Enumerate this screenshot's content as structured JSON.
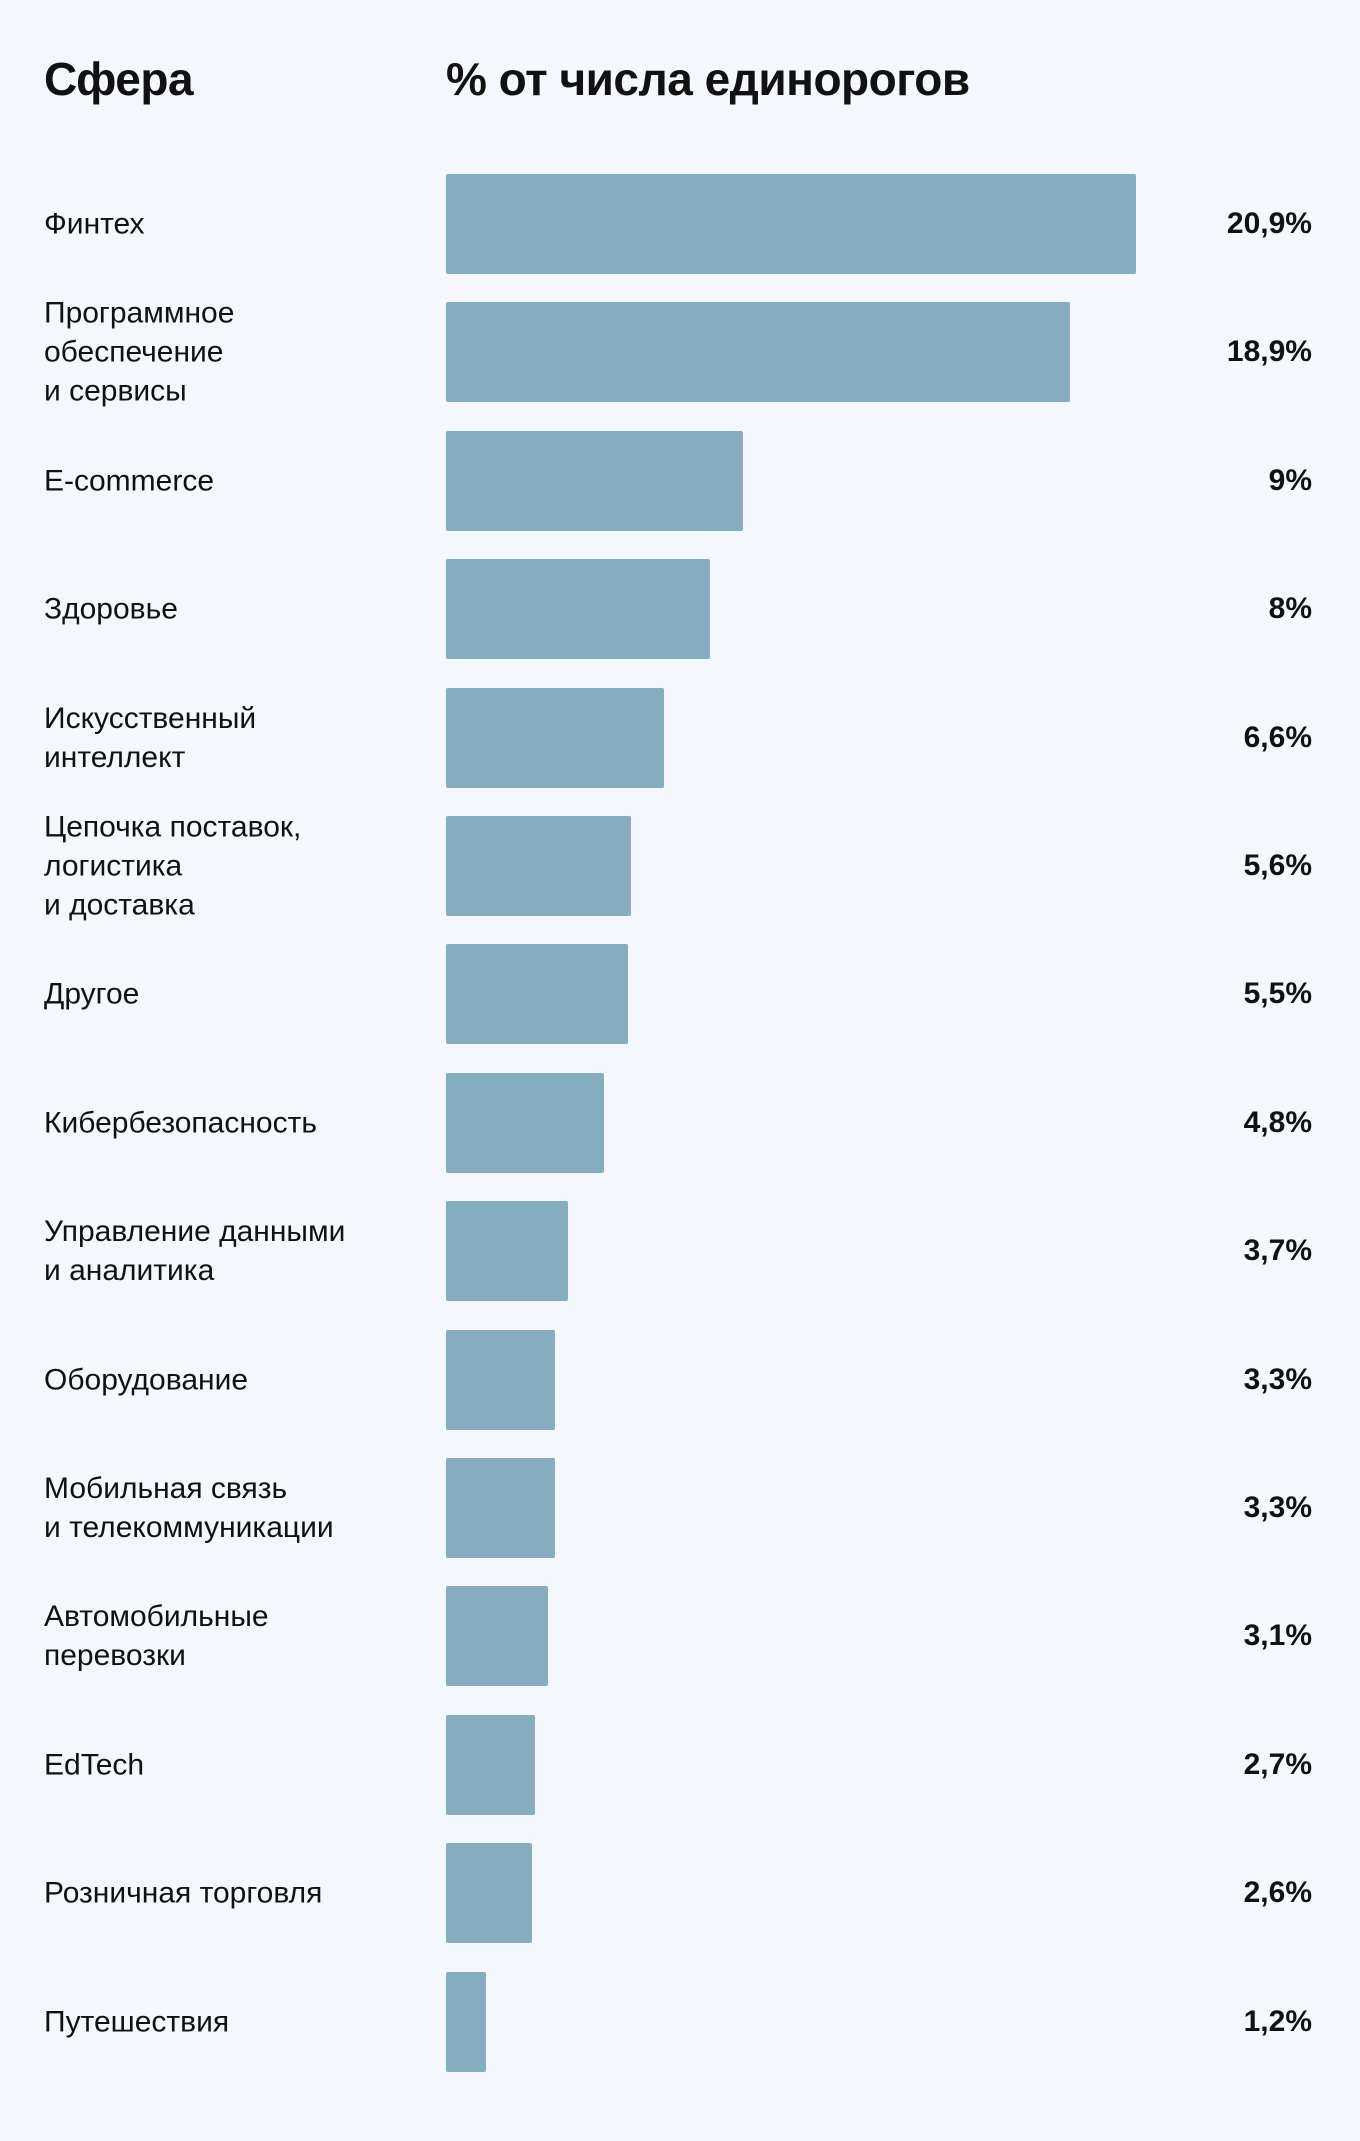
{
  "chart_data": {
    "type": "bar",
    "orientation": "horizontal",
    "category_header": "Сфера",
    "value_header": "% от числа единорогов",
    "categories": [
      "Финтех",
      "Программное\nобеспечение\nи сервисы",
      "E-commerce",
      "Здоровье",
      "Искусственный\nинтеллект",
      "Цепочка поставок,\nлогистика\nи доставка",
      "Другое",
      "Кибербезопасность",
      "Управление данными\nи аналитика",
      "Оборудование",
      "Мобильная связь\nи телекоммуникации",
      "Автомобильные\nперевозки",
      "EdTech",
      "Розничная торговля",
      "Путешествия"
    ],
    "values": [
      20.9,
      18.9,
      9,
      8,
      6.6,
      5.6,
      5.5,
      4.8,
      3.7,
      3.3,
      3.3,
      3.1,
      2.7,
      2.6,
      1.2
    ],
    "value_labels": [
      "20,9%",
      "18,9%",
      "9%",
      "8%",
      "6,6%",
      "5,6%",
      "5,5%",
      "4,8%",
      "3,7%",
      "3,3%",
      "3,3%",
      "3,1%",
      "2,7%",
      "2,6%",
      "1,2%"
    ],
    "color": "#86adbf"
  }
}
